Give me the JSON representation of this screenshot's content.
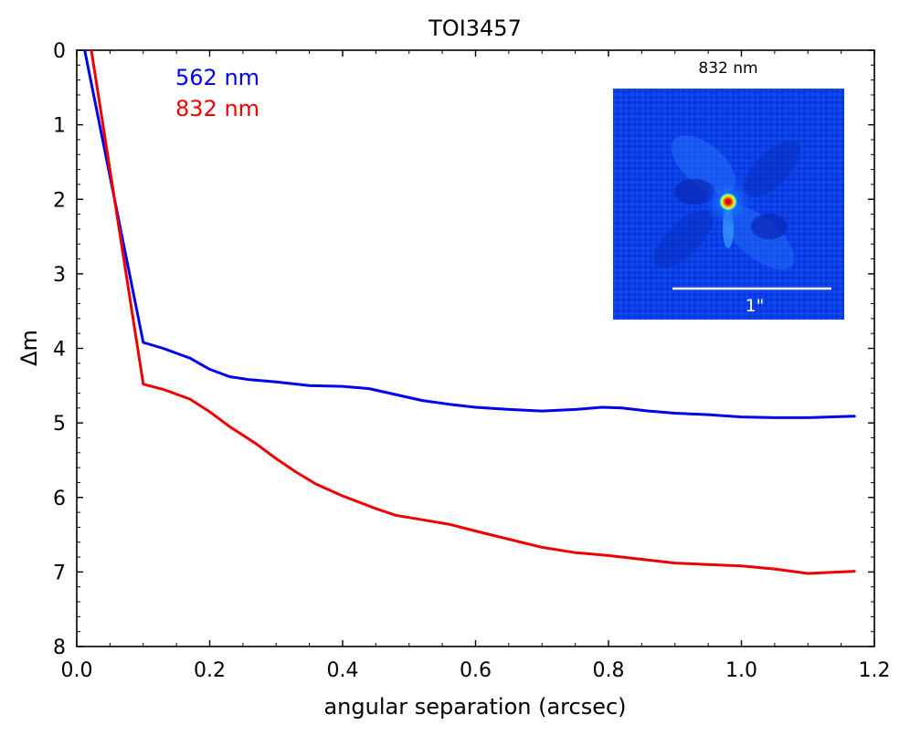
{
  "chart_data": {
    "type": "line",
    "title": "TOI3457",
    "xlabel": "angular separation (arcsec)",
    "ylabel": "Δm",
    "xlim": [
      0.0,
      1.2
    ],
    "ylim": [
      8,
      0
    ],
    "y_inverted": true,
    "grid": false,
    "xticks": [
      0.0,
      0.2,
      0.4,
      0.6,
      0.8,
      1.0,
      1.2
    ],
    "xtick_labels": [
      "0.0",
      "0.2",
      "0.4",
      "0.6",
      "0.8",
      "1.0",
      "1.2"
    ],
    "yticks": [
      0,
      1,
      2,
      3,
      4,
      5,
      6,
      7,
      8
    ],
    "ytick_labels": [
      "0",
      "1",
      "2",
      "3",
      "4",
      "5",
      "6",
      "7",
      "8"
    ],
    "legend_position": "top-left",
    "series": [
      {
        "name": "562 nm",
        "color": "#0000ee",
        "x": [
          0.012,
          0.1,
          0.13,
          0.17,
          0.2,
          0.23,
          0.26,
          0.3,
          0.35,
          0.4,
          0.44,
          0.48,
          0.52,
          0.56,
          0.6,
          0.65,
          0.7,
          0.75,
          0.79,
          0.82,
          0.86,
          0.9,
          0.95,
          1.0,
          1.05,
          1.1,
          1.17
        ],
        "y": [
          0.0,
          3.92,
          4.0,
          4.13,
          4.28,
          4.38,
          4.42,
          4.45,
          4.5,
          4.51,
          4.54,
          4.62,
          4.7,
          4.75,
          4.79,
          4.82,
          4.84,
          4.82,
          4.79,
          4.8,
          4.84,
          4.87,
          4.89,
          4.92,
          4.93,
          4.93,
          4.91
        ]
      },
      {
        "name": "832 nm",
        "color": "#ee0000",
        "x": [
          0.022,
          0.1,
          0.13,
          0.17,
          0.2,
          0.23,
          0.27,
          0.3,
          0.33,
          0.36,
          0.4,
          0.45,
          0.48,
          0.52,
          0.56,
          0.6,
          0.65,
          0.7,
          0.75,
          0.8,
          0.85,
          0.9,
          0.95,
          1.0,
          1.05,
          1.1,
          1.17
        ],
        "y": [
          0.0,
          4.48,
          4.55,
          4.68,
          4.85,
          5.05,
          5.28,
          5.48,
          5.66,
          5.82,
          5.98,
          6.15,
          6.24,
          6.3,
          6.36,
          6.45,
          6.56,
          6.67,
          6.74,
          6.78,
          6.83,
          6.88,
          6.9,
          6.92,
          6.96,
          7.02,
          6.99
        ]
      }
    ],
    "inset": {
      "title": "832 nm",
      "scale_bar_label": "1\""
    }
  }
}
